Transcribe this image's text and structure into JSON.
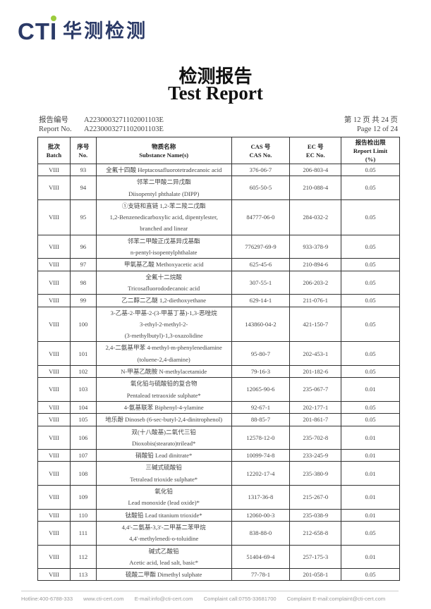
{
  "logo": {
    "brand": "CTI",
    "name_cn": "华测检测",
    "brand_color": "#2b3a67",
    "dot_color": "#9ccc3c"
  },
  "title": {
    "cn": "检测报告",
    "en": "Test Report"
  },
  "report": {
    "no_label_cn": "报告编号",
    "no_label_en": "Report No.",
    "no_value": "A2230003271102001103E",
    "page_cn": "第 12 页  共 24 页",
    "page_en": "Page 12 of 24"
  },
  "table": {
    "headers": [
      {
        "cn": "批次",
        "en": "Batch"
      },
      {
        "cn": "序号",
        "en": "No."
      },
      {
        "cn": "物质名称",
        "en": "Substance Name(s)"
      },
      {
        "cn": "CAS 号",
        "en": "CAS No."
      },
      {
        "cn": "EC 号",
        "en": "EC No."
      },
      {
        "cn": "报告检出限",
        "en": "Report Limit",
        "en2": "(%)"
      }
    ],
    "rows": [
      {
        "batch": "VIII",
        "no": "93",
        "name": [
          "全氟十四酸 Heptacosafluorotetradecanoic acid"
        ],
        "cas": "376-06-7",
        "ec": "206-803-4",
        "limit": "0.05"
      },
      {
        "batch": "VIII",
        "no": "94",
        "name": [
          "邻苯二甲酸二异戊酯",
          "Diisopentyl phthalate (DIPP)"
        ],
        "cas": "605-50-5",
        "ec": "210-088-4",
        "limit": "0.05"
      },
      {
        "batch": "VIII",
        "no": "95",
        "name": [
          "①支链和直链 1,2-苯二羧二戊酯",
          "1,2-Benzenedicarboxylic acid, dipentylester,",
          "branched and linear"
        ],
        "cas": "84777-06-0",
        "ec": "284-032-2",
        "limit": "0.05"
      },
      {
        "batch": "VIII",
        "no": "96",
        "name": [
          "邻苯二甲酸正戊基异戊基酯",
          "n-pentyl-isopentylphthalate"
        ],
        "cas": "776297-69-9",
        "ec": "933-378-9",
        "limit": "0.05"
      },
      {
        "batch": "VIII",
        "no": "97",
        "name": [
          "甲氧基乙酸 Methoxyacetic acid"
        ],
        "cas": "625-45-6",
        "ec": "210-894-6",
        "limit": "0.05"
      },
      {
        "batch": "VIII",
        "no": "98",
        "name": [
          "全氟十二烷酸",
          "Tricosafluorododecanoic acid"
        ],
        "cas": "307-55-1",
        "ec": "206-203-2",
        "limit": "0.05"
      },
      {
        "batch": "VIII",
        "no": "99",
        "name": [
          "乙二醇二乙醚 1,2-diethoxyethane"
        ],
        "cas": "629-14-1",
        "ec": "211-076-1",
        "limit": "0.05"
      },
      {
        "batch": "VIII",
        "no": "100",
        "name": [
          "3-乙基-2-甲基-2-(3-甲基丁基)-1,3-恶唑烷",
          "3-ethyl-2-methyl-2-",
          "(3-methylbutyl)-1,3-oxazolidine"
        ],
        "cas": "143860-04-2",
        "ec": "421-150-7",
        "limit": "0.05"
      },
      {
        "batch": "VIII",
        "no": "101",
        "name": [
          "2,4-二氨基甲苯 4-methyl-m-phenylenediamine",
          "(toluene-2,4-diamine)"
        ],
        "cas": "95-80-7",
        "ec": "202-453-1",
        "limit": "0.05"
      },
      {
        "batch": "VIII",
        "no": "102",
        "name": [
          "N-甲基乙酰胺 N-methylacetamide"
        ],
        "cas": "79-16-3",
        "ec": "201-182-6",
        "limit": "0.05"
      },
      {
        "batch": "VIII",
        "no": "103",
        "name": [
          "氧化铅与硫酸铅的复合物",
          "Pentalead tetraoxide sulphate*"
        ],
        "cas": "12065-90-6",
        "ec": "235-067-7",
        "limit": "0.01"
      },
      {
        "batch": "VIII",
        "no": "104",
        "name": [
          "4-氨基联苯 Biphenyl-4-ylamine"
        ],
        "cas": "92-67-1",
        "ec": "202-177-1",
        "limit": "0.05"
      },
      {
        "batch": "VIII",
        "no": "105",
        "name": [
          "地乐酚 Dinoseb (6-sec-butyl-2,4-dinitrophenol)"
        ],
        "cas": "88-85-7",
        "ec": "201-861-7",
        "limit": "0.05"
      },
      {
        "batch": "VIII",
        "no": "106",
        "name": [
          "双(十八酸基)二氧代三铅",
          "Dioxobis(stearato)trilead*"
        ],
        "cas": "12578-12-0",
        "ec": "235-702-8",
        "limit": "0.01"
      },
      {
        "batch": "VIII",
        "no": "107",
        "name": [
          "硝酸铅 Lead dinitrate*"
        ],
        "cas": "10099-74-8",
        "ec": "233-245-9",
        "limit": "0.01"
      },
      {
        "batch": "VIII",
        "no": "108",
        "name": [
          "三碱式硫酸铅",
          "Tetralead trioxide sulphate*"
        ],
        "cas": "12202-17-4",
        "ec": "235-380-9",
        "limit": "0.01"
      },
      {
        "batch": "VIII",
        "no": "109",
        "name": [
          "氧化铅",
          "Lead monoxide (lead oxide)*"
        ],
        "cas": "1317-36-8",
        "ec": "215-267-0",
        "limit": "0.01"
      },
      {
        "batch": "VIII",
        "no": "110",
        "name": [
          "钛酸铅 Lead titanium trioxide*"
        ],
        "cas": "12060-00-3",
        "ec": "235-038-9",
        "limit": "0.01"
      },
      {
        "batch": "VIII",
        "no": "111",
        "name": [
          "4,4'-二氨基-3,3'-二甲基二苯甲烷",
          "4,4'-methylenedi-o-toluidine"
        ],
        "cas": "838-88-0",
        "ec": "212-658-8",
        "limit": "0.05"
      },
      {
        "batch": "VIII",
        "no": "112",
        "name": [
          "碱式乙酸铅",
          "Acetic acid, lead salt, basic*"
        ],
        "cas": "51404-69-4",
        "ec": "257-175-3",
        "limit": "0.01"
      },
      {
        "batch": "VIII",
        "no": "113",
        "name": [
          "硫酸二甲酯 Dimethyl sulphate"
        ],
        "cas": "77-78-1",
        "ec": "201-058-1",
        "limit": "0.05"
      }
    ]
  },
  "footer": {
    "hotline": "Hotline:400-6788-333",
    "website": "www.cti-cert.com",
    "email": "E-mail:info@cti-cert.com",
    "complaint_call": "Complaint call:0755-33681700",
    "complaint_email": "Complaint E-mail:complaint@cti-cert.com"
  }
}
